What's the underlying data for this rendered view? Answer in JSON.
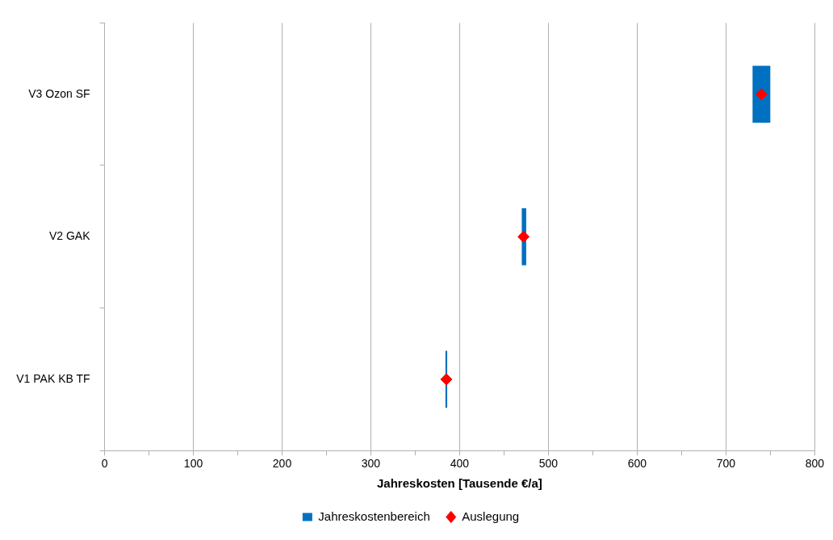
{
  "chart_data": {
    "type": "bar",
    "orientation": "horizontal",
    "xlabel": "Jahreskosten [Tausende €/a]",
    "categories": [
      "V3 Ozon SF",
      "V2 GAK",
      "V1 PAK KB TF"
    ],
    "series": [
      {
        "name": "Jahreskostenbereich",
        "color": "#0070c0",
        "base": [
          730,
          470,
          384
        ],
        "values": [
          20,
          5,
          2
        ]
      },
      {
        "name": "Auslegung",
        "type": "scatter",
        "color": "#ff0000",
        "marker": "diamond",
        "x": [
          "V3 Ozon SF",
          "V2 GAK",
          "V1 PAK KB TF"
        ],
        "values": [
          740,
          472,
          385
        ]
      }
    ],
    "xlim": [
      0,
      800
    ],
    "xticks": [
      0,
      {
        "value": 50,
        "label": null
      },
      100,
      {
        "value": 150,
        "label": null
      },
      200,
      {
        "value": 250,
        "label": null
      },
      300,
      {
        "value": 350,
        "label": null
      },
      400,
      {
        "value": 450,
        "label": null
      },
      500,
      {
        "value": 550,
        "label": null
      },
      600,
      {
        "value": 650,
        "label": null
      },
      700,
      {
        "value": 750,
        "label": null
      },
      800
    ],
    "grid": "x",
    "legend": "bottom"
  }
}
